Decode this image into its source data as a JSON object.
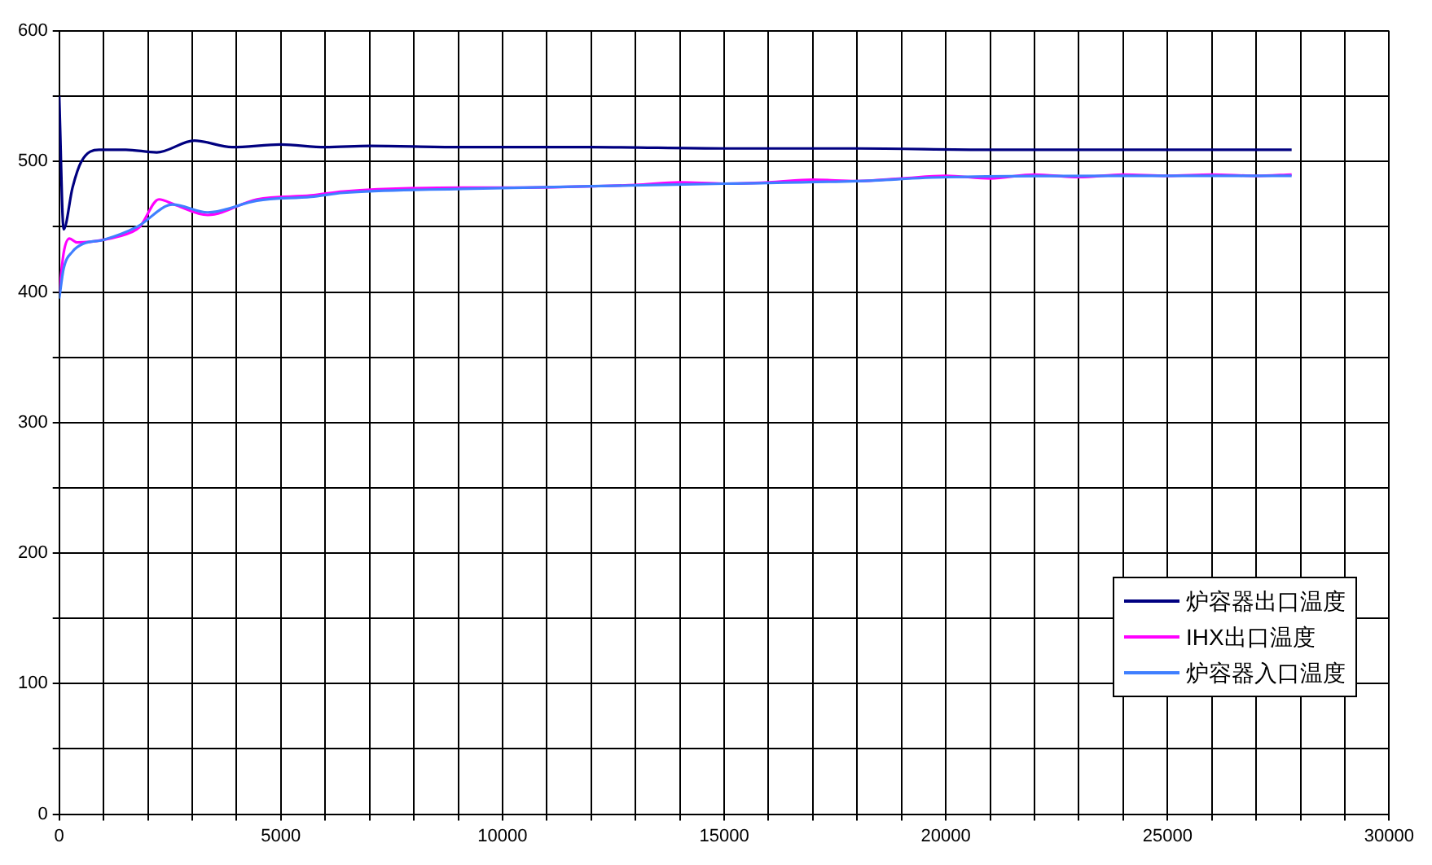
{
  "chart_data": {
    "type": "line",
    "xlim": [
      0,
      30000
    ],
    "ylim": [
      0,
      600
    ],
    "xticks": [
      0,
      {
        "value": 1000,
        "label": null
      },
      {
        "value": 2000,
        "label": null
      },
      {
        "value": 3000,
        "label": null
      },
      {
        "value": 4000,
        "label": null
      },
      5000,
      {
        "value": 6000,
        "label": null
      },
      {
        "value": 7000,
        "label": null
      },
      {
        "value": 8000,
        "label": null
      },
      {
        "value": 9000,
        "label": null
      },
      10000,
      {
        "value": 11000,
        "label": null
      },
      {
        "value": 12000,
        "label": null
      },
      {
        "value": 13000,
        "label": null
      },
      {
        "value": 14000,
        "label": null
      },
      15000,
      {
        "value": 16000,
        "label": null
      },
      {
        "value": 17000,
        "label": null
      },
      {
        "value": 18000,
        "label": null
      },
      {
        "value": 19000,
        "label": null
      },
      20000,
      {
        "value": 21000,
        "label": null
      },
      {
        "value": 22000,
        "label": null
      },
      {
        "value": 23000,
        "label": null
      },
      {
        "value": 24000,
        "label": null
      },
      25000,
      {
        "value": 26000,
        "label": null
      },
      {
        "value": 27000,
        "label": null
      },
      {
        "value": 28000,
        "label": null
      },
      {
        "value": 29000,
        "label": null
      },
      30000
    ],
    "yticks": [
      0,
      {
        "value": 50,
        "label": null
      },
      100,
      {
        "value": 150,
        "label": null
      },
      200,
      {
        "value": 250,
        "label": null
      },
      300,
      {
        "value": 350,
        "label": null
      },
      400,
      {
        "value": 450,
        "label": null
      },
      500,
      {
        "value": 550,
        "label": null
      },
      600
    ],
    "grid": true,
    "legend": "bottom right",
    "marker": "none",
    "line_style": "solid",
    "series": [
      {
        "name": "炉容器出口温度",
        "color": "#000080",
        "x": [
          0,
          100,
          300,
          500,
          900,
          1500,
          2200,
          3050,
          3900,
          5000,
          6000,
          7000,
          9000,
          12000,
          15000,
          18000,
          21000,
          24000,
          27800
        ],
        "values": [
          550,
          448,
          480,
          500,
          509,
          509,
          507,
          516,
          511,
          513,
          511,
          512,
          511,
          511,
          510,
          510,
          509,
          509,
          509
        ]
      },
      {
        "name": "IHX出口温度",
        "color": "#ff00ff",
        "x": [
          0,
          100,
          230,
          400,
          1000,
          1640,
          1820,
          2250,
          2600,
          3350,
          4460,
          5680,
          6410,
          9100,
          10500,
          12000,
          13000,
          14000,
          15000,
          16000,
          17000,
          18000,
          19000,
          20000,
          21000,
          22000,
          23000,
          24000,
          25000,
          26000,
          27000,
          27800
        ],
        "values": [
          399,
          430,
          441,
          438,
          440,
          446,
          450,
          471,
          467,
          459,
          471,
          474,
          477,
          480,
          480,
          481,
          482,
          484,
          483,
          484,
          486,
          485,
          487,
          489,
          487,
          490,
          488,
          490,
          489,
          490,
          489,
          490
        ]
      },
      {
        "name": "炉容器入口温度",
        "color": "#3f7fff",
        "x": [
          0,
          100,
          300,
          540,
          1000,
          1760,
          2560,
          3350,
          4460,
          5680,
          6410,
          9100,
          12000,
          15000,
          18000,
          20000,
          24000,
          27800
        ],
        "values": [
          395,
          418,
          431,
          437,
          440,
          450,
          467,
          461,
          470,
          473,
          476,
          479,
          481,
          483,
          485,
          488,
          489,
          489
        ]
      }
    ]
  }
}
